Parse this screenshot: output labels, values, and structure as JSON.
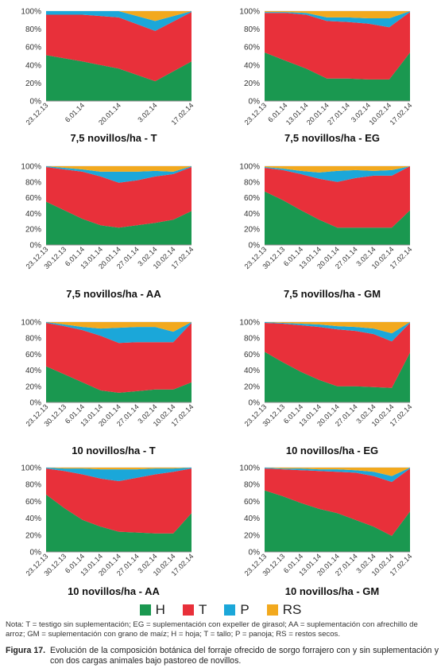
{
  "colors": {
    "H": "#1a9850",
    "T": "#e8303a",
    "P": "#1ba7d9",
    "RS": "#f2a91e"
  },
  "legend": [
    {
      "key": "H",
      "label": "H"
    },
    {
      "key": "T",
      "label": "T"
    },
    {
      "key": "P",
      "label": "P"
    },
    {
      "key": "RS",
      "label": "RS"
    }
  ],
  "y_ticks": [
    "0%",
    "20%",
    "40%",
    "60%",
    "80%",
    "100%"
  ],
  "note": "Nota: T = testigo sin suplementación; EG = suplementación con expeller de girasol; AA = suplementación con afrechillo de arroz; GM = suplementación con grano de maíz; H = hoja; T = tallo; P = panoja; RS = restos secos.",
  "caption_num": "Figura 17.",
  "caption_text": "Evolución de la composición botánica del forraje ofrecido de sorgo forrajero con y sin suplementación y con dos cargas animales bajo pastoreo de novillos.",
  "chart_data": [
    {
      "type": "area",
      "title": "7,5 novillos/ha - T",
      "x": [
        "23.12.13",
        "6.01.14",
        "20.01.14",
        "3.02.14",
        "17.02.14"
      ],
      "ylim": [
        0,
        100
      ],
      "series": [
        {
          "name": "H",
          "values": [
            51,
            44,
            36,
            22,
            44
          ]
        },
        {
          "name": "T",
          "values": [
            45,
            52,
            57,
            56,
            55
          ]
        },
        {
          "name": "P",
          "values": [
            4,
            4,
            7,
            11,
            1
          ]
        },
        {
          "name": "RS",
          "values": [
            0,
            0,
            0,
            11,
            0
          ]
        }
      ]
    },
    {
      "type": "area",
      "title": "7,5 novillos/ha - EG",
      "x": [
        "23.12.13",
        "6.01.14",
        "13.01.14",
        "20.01.14",
        "27.01.14",
        "3.02.14",
        "10.02.14",
        "17.02.14"
      ],
      "ylim": [
        0,
        100
      ],
      "series": [
        {
          "name": "H",
          "values": [
            54,
            45,
            36,
            25,
            25,
            24,
            24,
            54
          ]
        },
        {
          "name": "T",
          "values": [
            44,
            53,
            60,
            64,
            63,
            62,
            58,
            45
          ]
        },
        {
          "name": "P",
          "values": [
            1,
            1,
            2,
            4,
            5,
            6,
            10,
            1
          ]
        },
        {
          "name": "RS",
          "values": [
            1,
            1,
            2,
            7,
            7,
            8,
            8,
            0
          ]
        }
      ]
    },
    {
      "type": "area",
      "title": "7,5 novillos/ha - AA",
      "x": [
        "23.12.13",
        "30.12.13",
        "6.01.14",
        "13.01.14",
        "20.01.14",
        "27.01.14",
        "3.02.14",
        "10.02.14",
        "17.02.14"
      ],
      "ylim": [
        0,
        100
      ],
      "series": [
        {
          "name": "H",
          "values": [
            55,
            44,
            33,
            25,
            22,
            25,
            28,
            32,
            43
          ]
        },
        {
          "name": "T",
          "values": [
            44,
            52,
            60,
            62,
            57,
            57,
            59,
            58,
            56
          ]
        },
        {
          "name": "P",
          "values": [
            1,
            2,
            3,
            6,
            14,
            11,
            7,
            3,
            1
          ]
        },
        {
          "name": "RS",
          "values": [
            0,
            2,
            4,
            7,
            7,
            7,
            6,
            7,
            0
          ]
        }
      ]
    },
    {
      "type": "area",
      "title": "7,5 novillos/ha - GM",
      "x": [
        "23.12.13",
        "30.12.13",
        "6.01.14",
        "13.01.14",
        "20.01.14",
        "27.01.14",
        "3.02.14",
        "10.02.14",
        "17.02.14"
      ],
      "ylim": [
        0,
        100
      ],
      "series": [
        {
          "name": "H",
          "values": [
            68,
            57,
            44,
            32,
            22,
            22,
            22,
            22,
            44
          ]
        },
        {
          "name": "T",
          "values": [
            30,
            38,
            46,
            52,
            58,
            63,
            66,
            66,
            56
          ]
        },
        {
          "name": "P",
          "values": [
            1,
            2,
            4,
            8,
            14,
            10,
            6,
            7,
            0
          ]
        },
        {
          "name": "RS",
          "values": [
            1,
            3,
            6,
            8,
            6,
            5,
            6,
            5,
            0
          ]
        }
      ]
    },
    {
      "type": "area",
      "title": "10 novillos/ha - T",
      "x": [
        "23.12.13",
        "30.12.13",
        "6.01.14",
        "13.01.14",
        "20.01.14",
        "27.01.14",
        "3.02.14",
        "10.02.14",
        "17.02.14"
      ],
      "ylim": [
        0,
        100
      ],
      "series": [
        {
          "name": "H",
          "values": [
            45,
            35,
            25,
            15,
            12,
            14,
            16,
            16,
            25
          ]
        },
        {
          "name": "T",
          "values": [
            54,
            60,
            65,
            68,
            62,
            61,
            59,
            59,
            74
          ]
        },
        {
          "name": "P",
          "values": [
            1,
            2,
            4,
            9,
            19,
            19,
            19,
            13,
            1
          ]
        },
        {
          "name": "RS",
          "values": [
            0,
            3,
            6,
            8,
            7,
            6,
            6,
            12,
            0
          ]
        }
      ]
    },
    {
      "type": "area",
      "title": "10 novillos/ha - EG",
      "x": [
        "23.12.13",
        "30.12.13",
        "6.01.14",
        "13.01.14",
        "20.01.14",
        "27.01.14",
        "3.02.14",
        "10.02.14",
        "17.02.14"
      ],
      "ylim": [
        0,
        100
      ],
      "series": [
        {
          "name": "H",
          "values": [
            63,
            50,
            38,
            28,
            20,
            20,
            19,
            18,
            62
          ]
        },
        {
          "name": "T",
          "values": [
            36,
            48,
            58,
            66,
            71,
            69,
            66,
            58,
            37
          ]
        },
        {
          "name": "P",
          "values": [
            1,
            1,
            2,
            3,
            4,
            5,
            7,
            10,
            1
          ]
        },
        {
          "name": "RS",
          "values": [
            0,
            1,
            2,
            3,
            5,
            6,
            8,
            14,
            0
          ]
        }
      ]
    },
    {
      "type": "area",
      "title": "10 novillos/ha - AA",
      "x": [
        "23.12.13",
        "30.12.13",
        "6.01.14",
        "13.01.14",
        "20.01.14",
        "27.01.14",
        "3.02.14",
        "10.02.14",
        "17.02.14"
      ],
      "ylim": [
        0,
        100
      ],
      "series": [
        {
          "name": "H",
          "values": [
            68,
            52,
            38,
            30,
            24,
            23,
            22,
            22,
            46
          ]
        },
        {
          "name": "T",
          "values": [
            31,
            44,
            54,
            57,
            60,
            65,
            70,
            73,
            53
          ]
        },
        {
          "name": "P",
          "values": [
            1,
            3,
            7,
            11,
            14,
            10,
            7,
            4,
            1
          ]
        },
        {
          "name": "RS",
          "values": [
            0,
            1,
            1,
            2,
            2,
            2,
            1,
            1,
            0
          ]
        }
      ]
    },
    {
      "type": "area",
      "title": "10 novillos/ha - GM",
      "x": [
        "23.12.13",
        "30.12.13",
        "6.01.14",
        "13.01.14",
        "20.01.14",
        "27.01.14",
        "3.02.14",
        "10.02.14",
        "17.02.14"
      ],
      "ylim": [
        0,
        100
      ],
      "series": [
        {
          "name": "H",
          "values": [
            73,
            66,
            58,
            51,
            46,
            38,
            30,
            19,
            48
          ]
        },
        {
          "name": "T",
          "values": [
            26,
            32,
            39,
            45,
            49,
            56,
            60,
            64,
            51
          ]
        },
        {
          "name": "P",
          "values": [
            1,
            1,
            2,
            2,
            3,
            3,
            5,
            7,
            1
          ]
        },
        {
          "name": "RS",
          "values": [
            0,
            1,
            1,
            2,
            2,
            3,
            5,
            10,
            0
          ]
        }
      ]
    }
  ]
}
